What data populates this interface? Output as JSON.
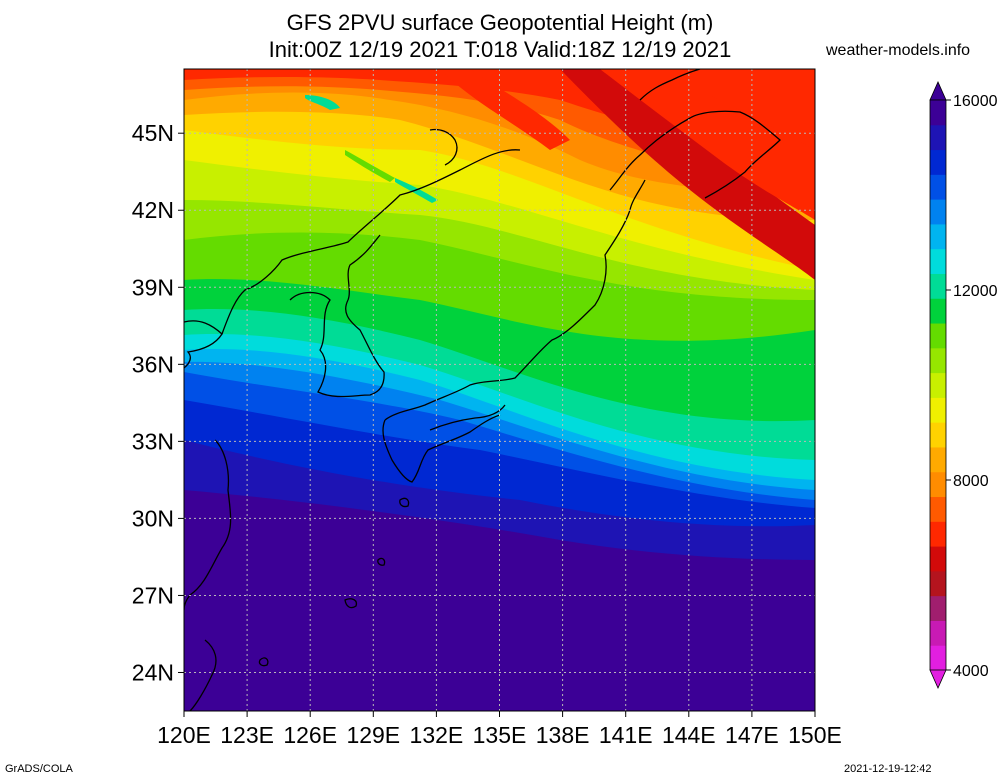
{
  "header": {
    "title_line1": "GFS 2PVU surface Geopotential Height (m)",
    "title_line2": "Init:00Z 12/19 2021 T:018 Valid:18Z 12/19 2021",
    "site": "weather-models.info"
  },
  "map": {
    "lat_labels": [
      "45N",
      "42N",
      "39N",
      "36N",
      "33N",
      "30N",
      "27N",
      "24N"
    ],
    "lon_labels": [
      "120E",
      "123E",
      "126E",
      "129E",
      "132E",
      "135E",
      "138E",
      "141E",
      "144E",
      "147E",
      "150E"
    ],
    "lat_values": [
      45,
      42,
      39,
      36,
      33,
      30,
      27,
      24
    ],
    "lon_values": [
      120,
      123,
      126,
      129,
      132,
      135,
      138,
      141,
      144,
      147,
      150
    ],
    "lat_range": [
      22.5,
      47.5
    ],
    "lon_range": [
      120,
      150
    ],
    "gridlines": "dotted"
  },
  "colorbar": {
    "labels": [
      "16000",
      "12000",
      "8000",
      "4000"
    ],
    "label_values": [
      16000,
      12000,
      8000,
      4000
    ],
    "range": [
      4000,
      16000
    ],
    "colors": [
      "#e21fe0",
      "#c81ab4",
      "#a01e6e",
      "#b4141e",
      "#d20a0a",
      "#ff2800",
      "#ff5a00",
      "#ff8c00",
      "#ffaa00",
      "#ffd200",
      "#f0f000",
      "#c8f000",
      "#96e600",
      "#64dc00",
      "#00d23c",
      "#00dc96",
      "#00dcdc",
      "#00b4f0",
      "#0082f0",
      "#0050e6",
      "#0028d2",
      "#1e14b4",
      "#3c0096"
    ]
  },
  "footer": {
    "left": "GrADS/COLA",
    "right": "2021-12-19-12:42"
  }
}
